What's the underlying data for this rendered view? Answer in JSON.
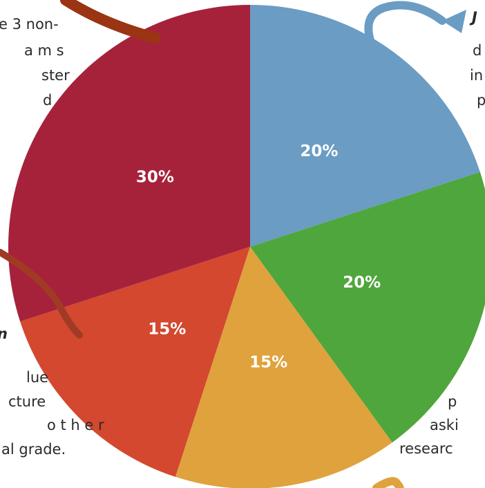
{
  "chart_data": {
    "type": "pie",
    "values": [
      20,
      20,
      15,
      15,
      30
    ],
    "value_labels": [
      "20%",
      "20%",
      "15%",
      "15%",
      "30%"
    ],
    "colors": [
      "#6b9cc3",
      "#4fa63c",
      "#dfa23d",
      "#d3482f",
      "#a6223b"
    ],
    "annotations": [
      "e 3 non-",
      "a m s",
      "ster",
      "d",
      "J",
      "d",
      "in",
      "p",
      "n",
      "lue",
      "cture",
      "o t h e r",
      "al grade.",
      "p",
      "aski",
      "researc"
    ]
  }
}
